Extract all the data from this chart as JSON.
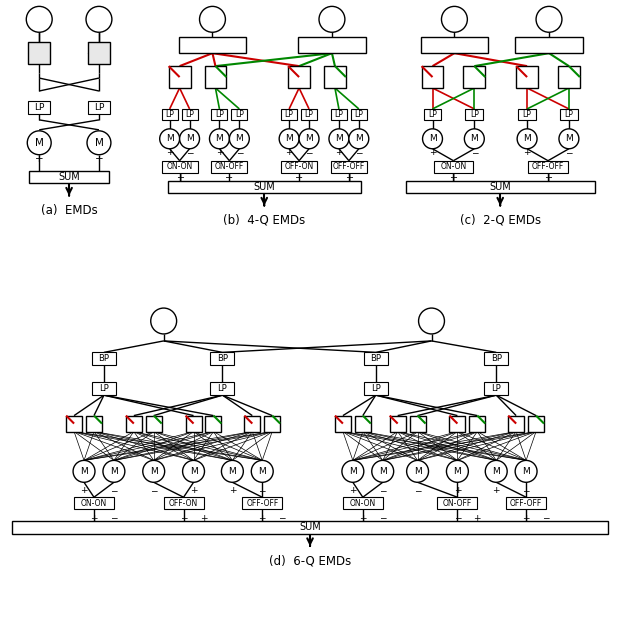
{
  "bg_color": "#ffffff",
  "line_color": "#000000",
  "red_color": "#cc0000",
  "green_color": "#008800",
  "captions": [
    "(a)  EMDs",
    "(b)  4-Q EMDs",
    "(c)  2-Q EMDs",
    "(d)  6-Q EMDs"
  ]
}
